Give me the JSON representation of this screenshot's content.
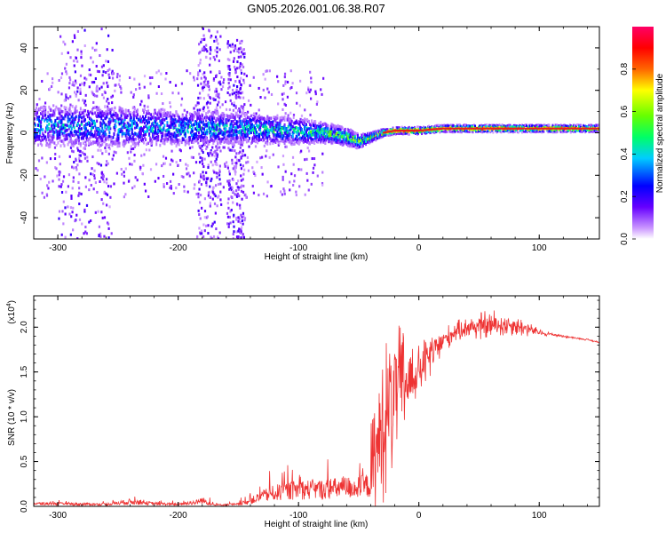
{
  "title": "GN05.2026.001.06.38.R07",
  "colors": {
    "snr_line": "#ee3333",
    "spectrogram_ridge": "#e81e1e",
    "colorbar_stops": [
      "#ffffff",
      "#cc99ff",
      "#6600ff",
      "#0000ff",
      "#00ccff",
      "#00ff66",
      "#66ff00",
      "#ffff00",
      "#ff6600",
      "#ff0000",
      "#ff0066"
    ]
  },
  "chart_data": [
    {
      "type": "heatmap",
      "name": "spectrogram",
      "xlabel": "Height of straight line (km)",
      "ylabel": "Frequency (Hz)",
      "xlim": [
        -320,
        150
      ],
      "ylim": [
        -50,
        50
      ],
      "xticks": [
        -300,
        -200,
        -100,
        0,
        100
      ],
      "xtick_labels": [
        "-300",
        "-200",
        "-100",
        "0",
        "100"
      ],
      "yticks": [
        -40,
        -20,
        0,
        20,
        40
      ],
      "ytick_labels": [
        "-40",
        "-20",
        "0",
        "20",
        "40"
      ],
      "colorbar": {
        "label": "Normalized spectral amplitude",
        "range": [
          0,
          1
        ],
        "ticks": [
          0.0,
          0.2,
          0.4,
          0.6,
          0.8
        ],
        "tick_labels": [
          "0.0",
          "0.2",
          "0.4",
          "0.6",
          "0.8"
        ]
      },
      "ridge": {
        "description_points_x": [
          -320,
          -250,
          -200,
          -150,
          -110,
          -80,
          -60,
          -50,
          -40,
          -30,
          -20,
          0,
          20,
          60,
          100,
          150
        ],
        "frequency": [
          3,
          3,
          2,
          2,
          1,
          0,
          -2,
          -4,
          -2,
          0,
          1,
          1,
          2,
          2,
          2,
          2
        ],
        "amplitude": [
          0.4,
          0.4,
          0.45,
          0.45,
          0.5,
          0.55,
          0.6,
          0.65,
          0.75,
          0.85,
          0.9,
          0.9,
          0.85,
          0.9,
          0.9,
          0.85
        ],
        "spread_hz": [
          12,
          12,
          10,
          9,
          8,
          6,
          5,
          4,
          2.5,
          2,
          2,
          2,
          2,
          2,
          2,
          2
        ]
      },
      "noise_columns": [
        {
          "x_range": [
            -300,
            -255
          ],
          "freq_range": [
            -50,
            50
          ]
        },
        {
          "x_range": [
            -185,
            -165
          ],
          "freq_range": [
            -50,
            50
          ]
        },
        {
          "x_range": [
            -160,
            -145
          ],
          "freq_range": [
            -50,
            45
          ]
        }
      ]
    },
    {
      "type": "line",
      "name": "snr",
      "xlabel": "Height of straight line (km)",
      "ylabel": "SNR (10 * v/v)",
      "multiplier_label": "(x10",
      "multiplier_exponent": "4",
      "multiplier_close": ")",
      "xlim": [
        -320,
        150
      ],
      "ylim": [
        0,
        23500
      ],
      "xticks": [
        -300,
        -200,
        -100,
        0,
        100
      ],
      "xtick_labels": [
        "-300",
        "-200",
        "-100",
        "0",
        "100"
      ],
      "yticks": [
        0,
        5000,
        10000,
        15000,
        20000
      ],
      "ytick_labels": [
        "0.0",
        "0.5",
        "1.0",
        "1.5",
        "2.0"
      ],
      "envelope": {
        "x": [
          -320,
          -260,
          -250,
          -240,
          -220,
          -200,
          -185,
          -180,
          -170,
          -150,
          -140,
          -130,
          -120,
          -100,
          -80,
          -60,
          -50,
          -40,
          -35,
          -30,
          -25,
          -20,
          -15,
          -10,
          -5,
          0,
          10,
          20,
          30,
          40,
          50,
          60,
          70,
          80,
          90,
          100,
          110,
          120,
          130,
          140,
          150
        ],
        "y": [
          400,
          300,
          500,
          700,
          400,
          300,
          600,
          900,
          200,
          300,
          800,
          1500,
          2000,
          2500,
          2500,
          2800,
          2800,
          3200,
          6000,
          9000,
          11000,
          12500,
          13500,
          14000,
          14500,
          15000,
          17000,
          18500,
          19500,
          20000,
          20100,
          20200,
          20300,
          20200,
          19800,
          19400,
          19200,
          19000,
          18800,
          18600,
          18300
        ],
        "noise_amplitude": [
          300,
          300,
          700,
          800,
          500,
          300,
          1200,
          1800,
          300,
          400,
          1500,
          2500,
          3000,
          3500,
          3500,
          3500,
          3500,
          6000,
          8000,
          9000,
          9000,
          8000,
          7000,
          6000,
          4000,
          3000,
          2500,
          1500,
          1200,
          1200,
          1500,
          1800,
          1500,
          1200,
          900,
          400,
          200,
          150,
          100,
          100,
          100
        ]
      }
    }
  ]
}
